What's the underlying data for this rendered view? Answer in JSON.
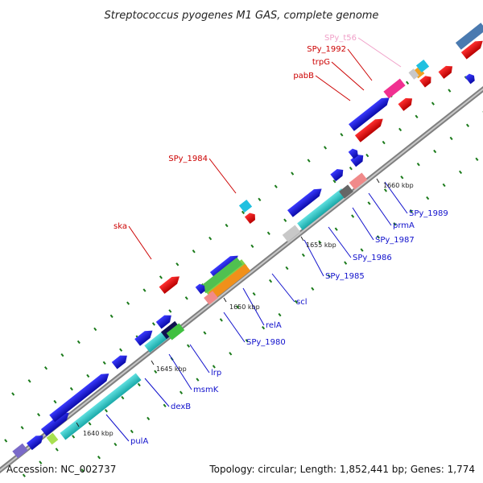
{
  "title": "Streptococcus pyogenes M1 GAS, complete genome",
  "footer": {
    "accession": "Accession: NC_002737",
    "summary": "Topology: circular; Length: 1,852,441 bp; Genes: 1,774"
  },
  "kbp_ticks": [
    "1640 kbp",
    "1645 kbp",
    "1650 kbp",
    "1655 kbp",
    "1660 kbp"
  ],
  "gene_labels": [
    {
      "text": "SPy_t56",
      "color": "#f0a0c8"
    },
    {
      "text": "SPy_1992",
      "color": "#cc0000"
    },
    {
      "text": "trpG",
      "color": "#cc0000"
    },
    {
      "text": "pabB",
      "color": "#cc0000"
    },
    {
      "text": "SPy_1984",
      "color": "#cc0000"
    },
    {
      "text": "ska",
      "color": "#cc0000"
    },
    {
      "text": "SPy_1989",
      "color": "#1010cc"
    },
    {
      "text": "prmA",
      "color": "#1010cc"
    },
    {
      "text": "SPy_1987",
      "color": "#1010cc"
    },
    {
      "text": "SPy_1986",
      "color": "#1010cc"
    },
    {
      "text": "SPy_1985",
      "color": "#1010cc"
    },
    {
      "text": "scl",
      "color": "#1010cc"
    },
    {
      "text": "relA",
      "color": "#1010cc"
    },
    {
      "text": "SPy_1980",
      "color": "#1010cc"
    },
    {
      "text": "lrp",
      "color": "#1010cc"
    },
    {
      "text": "msmK",
      "color": "#1010cc"
    },
    {
      "text": "dexB",
      "color": "#1010cc"
    },
    {
      "text": "pulA",
      "color": "#1010cc"
    }
  ],
  "colors": {
    "backbone": "#9a9a9a",
    "forward_gene": "#e00000",
    "reverse_gene": "#1010dd",
    "cds_cyan": "#30c8c8",
    "gc_tick": "#1a7a1a"
  }
}
